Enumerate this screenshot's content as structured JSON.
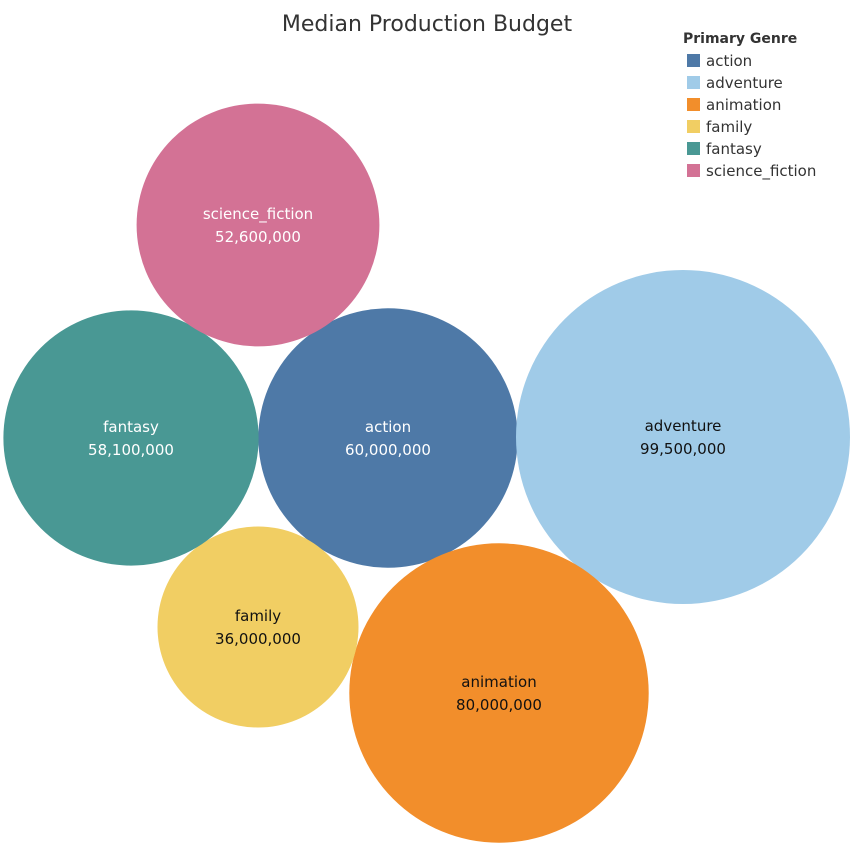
{
  "chart_data": {
    "type": "bubble",
    "title": "Median Production Budget",
    "legend": {
      "title": "Primary Genre",
      "placement": "top-right"
    },
    "series": [
      {
        "name": "action",
        "value": 60000000,
        "value_label": "60,000,000",
        "color": "#4e79a7",
        "text_color": "#ffffff"
      },
      {
        "name": "adventure",
        "value": 99500000,
        "value_label": "99,500,000",
        "color": "#a0cbe8",
        "text_color": "#111111"
      },
      {
        "name": "animation",
        "value": 80000000,
        "value_label": "80,000,000",
        "color": "#f28e2b",
        "text_color": "#111111"
      },
      {
        "name": "family",
        "value": 36000000,
        "value_label": "36,000,000",
        "color": "#f1ce63",
        "text_color": "#111111"
      },
      {
        "name": "fantasy",
        "value": 58100000,
        "value_label": "58,100,000",
        "color": "#499894",
        "text_color": "#ffffff"
      },
      {
        "name": "science_fiction",
        "value": 52600000,
        "value_label": "52,600,000",
        "color": "#d37295",
        "text_color": "#ffffff"
      }
    ]
  }
}
